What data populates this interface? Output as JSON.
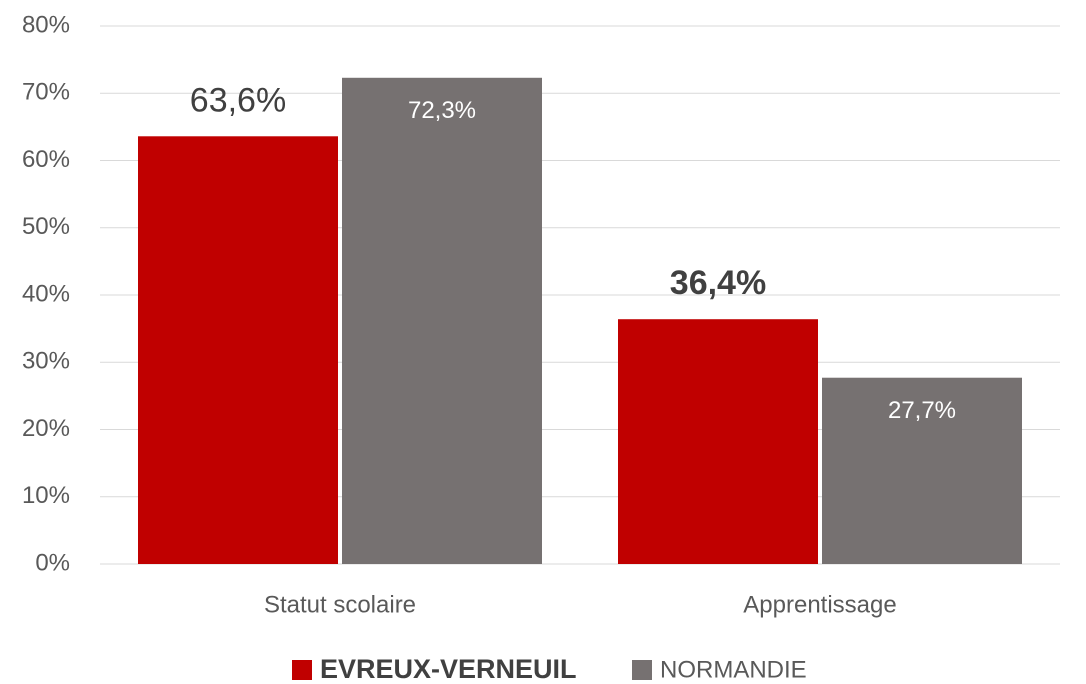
{
  "chart_data": {
    "type": "bar",
    "categories": [
      "Statut scolaire",
      "Apprentissage"
    ],
    "series": [
      {
        "name": "EVREUX-VERNEUIL",
        "color": "#c00000",
        "values": [
          63.6,
          36.4
        ],
        "value_labels": [
          "63,6%",
          "36,4%"
        ]
      },
      {
        "name": "NORMANDIE",
        "color": "#767171",
        "values": [
          72.3,
          27.7
        ],
        "value_labels": [
          "72,3%",
          "27,7%"
        ]
      }
    ],
    "ylim": [
      0,
      80
    ],
    "yticks": [
      {
        "value": 0,
        "label": "0%"
      },
      {
        "value": 10,
        "label": "10%"
      },
      {
        "value": 20,
        "label": "20%"
      },
      {
        "value": 30,
        "label": "30%"
      },
      {
        "value": 40,
        "label": "40%"
      },
      {
        "value": 50,
        "label": "50%"
      },
      {
        "value": 60,
        "label": "60%"
      },
      {
        "value": 70,
        "label": "70%"
      },
      {
        "value": 80,
        "label": "80%"
      }
    ],
    "grid": true,
    "legend": "bottom"
  }
}
